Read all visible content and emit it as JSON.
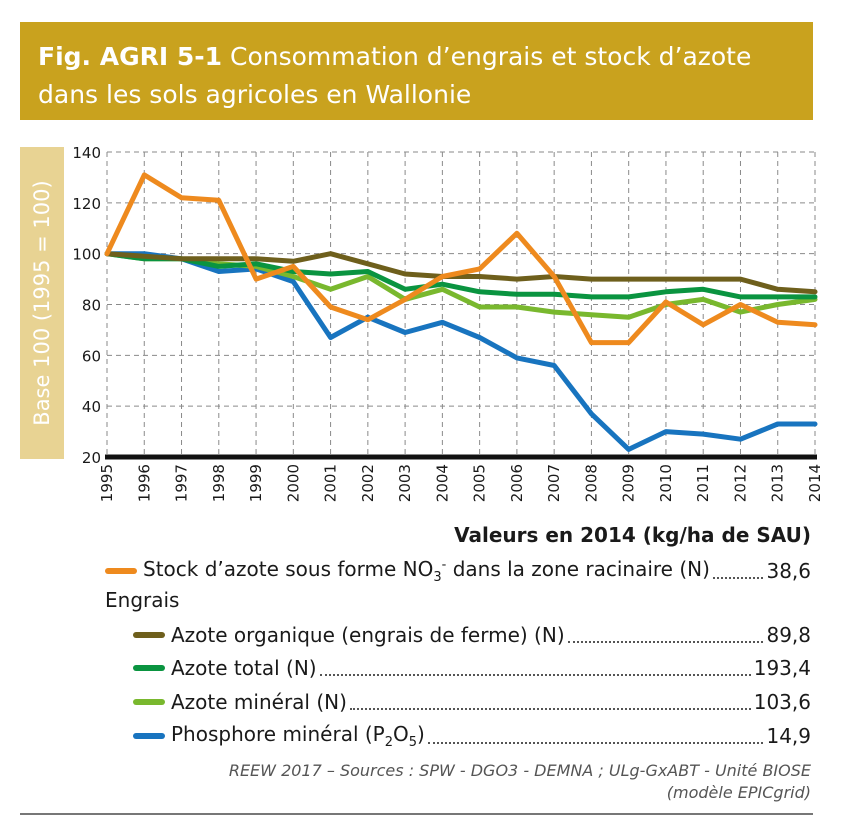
{
  "figure": {
    "id": "Fig. AGRI 5-1",
    "title": "Consommation d’engrais et stock d’azote dans les sols agricoles en Wallonie"
  },
  "values_header": "Valeurs en 2014 (kg/ha de SAU)",
  "legend": {
    "group_label": "Engrais",
    "items": [
      {
        "label": "Stock d’azote sous forme NO",
        "sub": "3",
        "sup": "-",
        "label_tail": " dans la zone racinaire (N)",
        "value": "38,6",
        "color": "#ee8a1e"
      },
      {
        "label": "Azote organique (engrais de ferme) (N)",
        "value": "89,8",
        "color": "#6e5f1c"
      },
      {
        "label": "Azote total (N)",
        "value": "193,4",
        "color": "#0a9440"
      },
      {
        "label": "Azote minéral (N)",
        "value": "103,6",
        "color": "#79b82e"
      },
      {
        "label": "Phosphore minéral (P",
        "sub": "2",
        "label_mid": "O",
        "sub2": "5",
        "label_tail": ")",
        "value": "14,9",
        "color": "#1874bf"
      }
    ]
  },
  "source": {
    "line1": "REEW 2017 – Sources : SPW - DGO3 - DEMNA ; ULg-GxABT - Unité BIOSE",
    "line2": "(modèle EPICgrid)"
  },
  "chart_data": {
    "type": "line",
    "ylabel": "Base 100 (1995 = 100)",
    "xlabel": "",
    "ylim": [
      20,
      140
    ],
    "yticks": [
      20,
      40,
      60,
      80,
      100,
      120,
      140
    ],
    "grid": true,
    "x": [
      "1995",
      "1996",
      "1997",
      "1998",
      "1999",
      "2000",
      "2001",
      "2002",
      "2003",
      "2004",
      "2005",
      "2006",
      "2007",
      "2008",
      "2009",
      "2010",
      "2011",
      "2012",
      "2013",
      "2014"
    ],
    "series": [
      {
        "name": "Stock d’azote sous forme NO3- dans la zone racinaire (N)",
        "color": "#ee8a1e",
        "values": [
          100,
          131,
          122,
          121,
          90,
          95,
          79,
          74,
          82,
          91,
          94,
          108,
          91,
          65,
          65,
          81,
          72,
          80,
          73,
          72
        ]
      },
      {
        "name": "Azote organique (engrais de ferme) (N)",
        "color": "#6e5f1c",
        "values": [
          100,
          99,
          98,
          98,
          98,
          97,
          100,
          96,
          92,
          91,
          91,
          90,
          91,
          90,
          90,
          90,
          90,
          90,
          86,
          85
        ]
      },
      {
        "name": "Azote total (N)",
        "color": "#0a9440",
        "values": [
          100,
          98,
          98,
          95,
          96,
          93,
          92,
          93,
          86,
          88,
          85,
          84,
          84,
          83,
          83,
          85,
          86,
          83,
          83,
          83
        ]
      },
      {
        "name": "Azote minéral (N)",
        "color": "#79b82e",
        "values": [
          100,
          98,
          98,
          96,
          95,
          91,
          86,
          91,
          82,
          86,
          79,
          79,
          77,
          76,
          75,
          80,
          82,
          77,
          80,
          82
        ]
      },
      {
        "name": "Phosphore minéral (P2O5)",
        "color": "#1874bf",
        "values": [
          100,
          100,
          98,
          93,
          94,
          89,
          67,
          75,
          69,
          73,
          67,
          59,
          56,
          37,
          23,
          30,
          29,
          27,
          33,
          33
        ]
      }
    ]
  }
}
